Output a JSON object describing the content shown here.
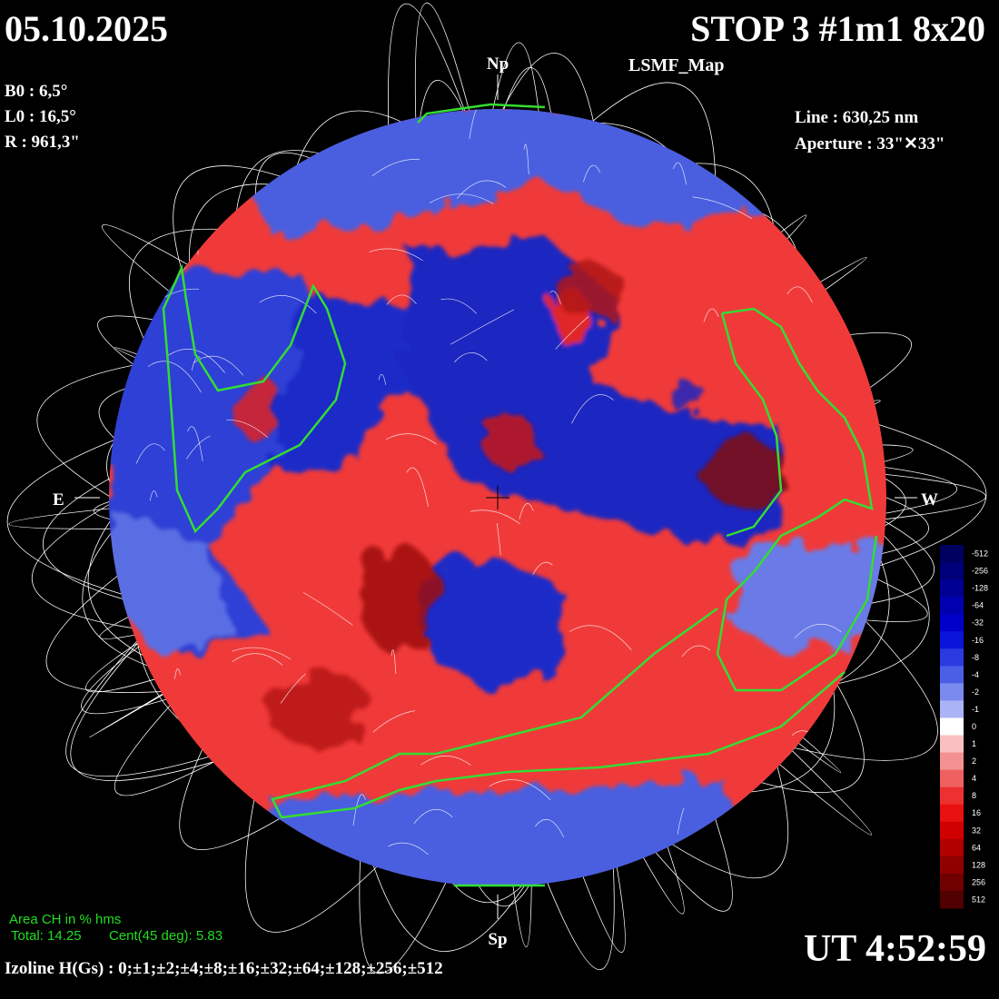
{
  "header": {
    "date": "05.10.2025",
    "station": "STOP 3 #1m1 8x20",
    "map_name": "LSMF_Map"
  },
  "parameters": {
    "b0": "B0 : 6,5°",
    "l0": "L0 : 16,5°",
    "r": "R  : 961,3\""
  },
  "instrument": {
    "line": "Line :  630,25 nm",
    "aperture": "Aperture : 33\"✕33\""
  },
  "directions": {
    "north": "Np",
    "south": "Sp",
    "east": "E",
    "west": "W"
  },
  "coronal_hole": {
    "title": "Area CH in % hms",
    "total": "Total: 14.25",
    "central": "Cent(45 deg): 5.83"
  },
  "time": "UT 4:52:59",
  "izoline": "Izoline H(Gs) : 0;±1;±2;±4;±8;±16;±32;±64;±128;±256;±512",
  "colorbar": {
    "labels": [
      -512,
      -256,
      -128,
      -64,
      -32,
      -16,
      -8,
      -4,
      -2,
      -1,
      0,
      1,
      2,
      4,
      8,
      16,
      32,
      64,
      128,
      256,
      512
    ]
  }
}
